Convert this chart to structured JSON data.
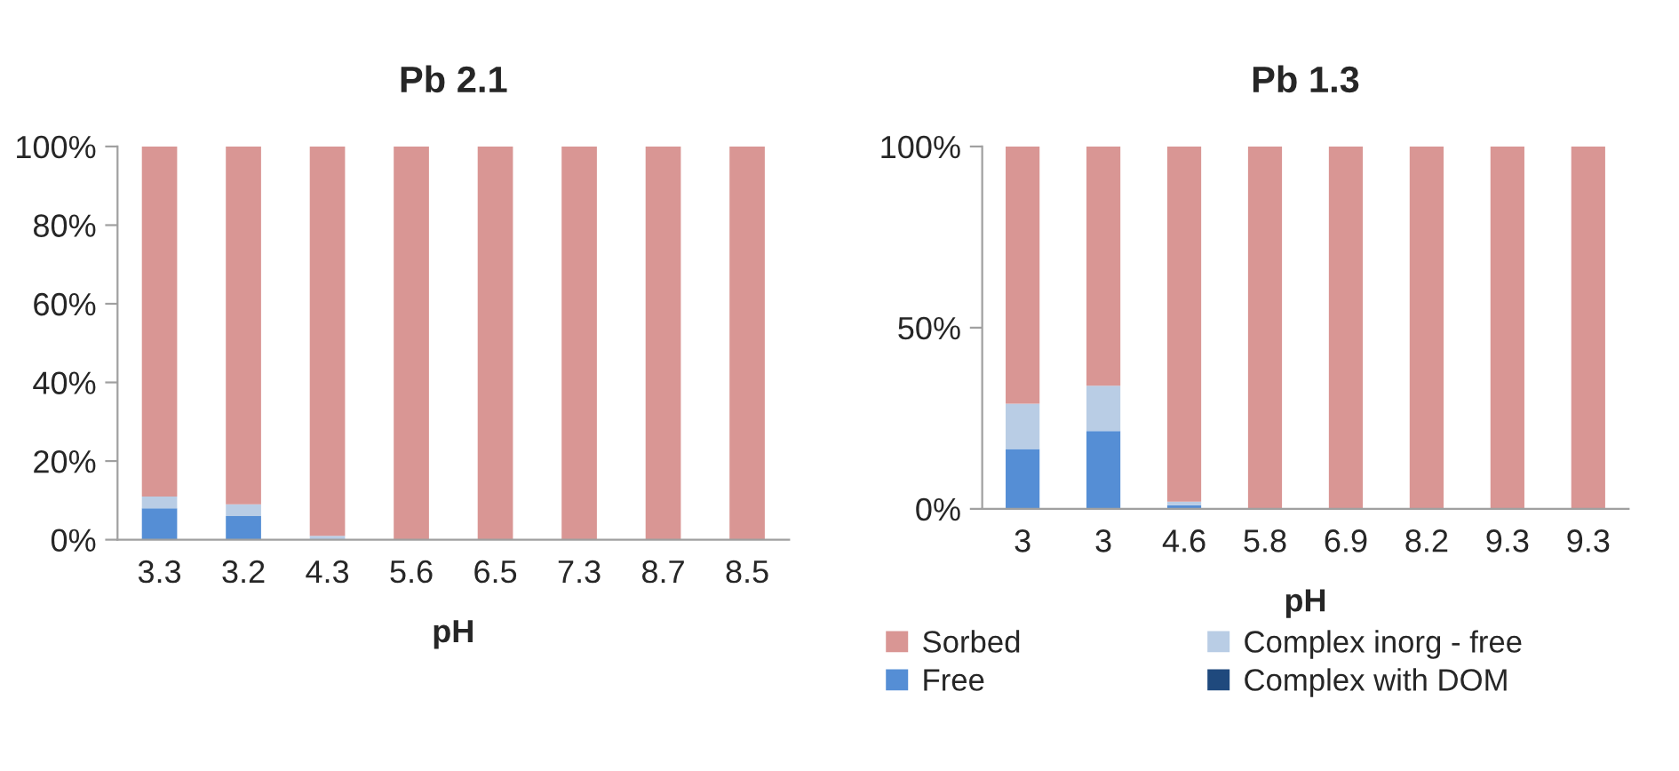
{
  "chart_data": [
    {
      "type": "bar",
      "title": "Pb 2.1",
      "xlabel": "pH",
      "stacked": true,
      "legend": false,
      "grid": false,
      "categories": [
        "3.3",
        "3.2",
        "4.3",
        "5.6",
        "6.5",
        "7.3",
        "8.7",
        "8.5"
      ],
      "ylim": [
        0,
        100
      ],
      "yticks": [
        {
          "value": 0,
          "label": "0%"
        },
        {
          "value": 20,
          "label": "20%"
        },
        {
          "value": 40,
          "label": "40%"
        },
        {
          "value": 60,
          "label": "60%"
        },
        {
          "value": 80,
          "label": "80%"
        },
        {
          "value": 100,
          "label": "100%"
        }
      ],
      "series": [
        {
          "color": "#558ed5",
          "values": [
            8,
            6,
            0,
            0,
            0,
            0,
            0,
            0
          ]
        },
        {
          "color": "#b9cde5",
          "values": [
            3,
            3,
            1,
            0,
            0,
            0,
            0,
            0
          ]
        },
        {
          "color": "#1f497d",
          "values": [
            0,
            0,
            0,
            0,
            0,
            0,
            0,
            0
          ]
        },
        {
          "color": "#d99694",
          "values": [
            89,
            91,
            99,
            100,
            100,
            100,
            100,
            100
          ]
        }
      ]
    },
    {
      "type": "bar",
      "title": "Pb 1.3",
      "xlabel": "pH",
      "stacked": true,
      "legend": "bottom",
      "grid": false,
      "categories": [
        "3",
        "3",
        "4.6",
        "5.8",
        "6.9",
        "8.2",
        "9.3",
        "9.3"
      ],
      "ylim": [
        0,
        100
      ],
      "yticks": [
        {
          "value": 0,
          "label": "0%"
        },
        {
          "value": 50,
          "label": "50%"
        },
        {
          "value": 100,
          "label": "100%"
        }
      ],
      "series": [
        {
          "name": "Free",
          "color": "#558ed5",
          "values": [
            16.5,
            21.5,
            1,
            0,
            0,
            0,
            0,
            0
          ]
        },
        {
          "name": "Complex inorg - free",
          "color": "#b9cde5",
          "values": [
            12.5,
            12.5,
            1,
            0,
            0,
            0,
            0,
            0
          ]
        },
        {
          "name": "Complex with DOM",
          "color": "#1f497d",
          "values": [
            0,
            0,
            0,
            0,
            0,
            0,
            0,
            0
          ]
        },
        {
          "name": "Sorbed",
          "color": "#d99694",
          "values": [
            71,
            66,
            98,
            100,
            100,
            100,
            100,
            100
          ]
        }
      ]
    }
  ]
}
